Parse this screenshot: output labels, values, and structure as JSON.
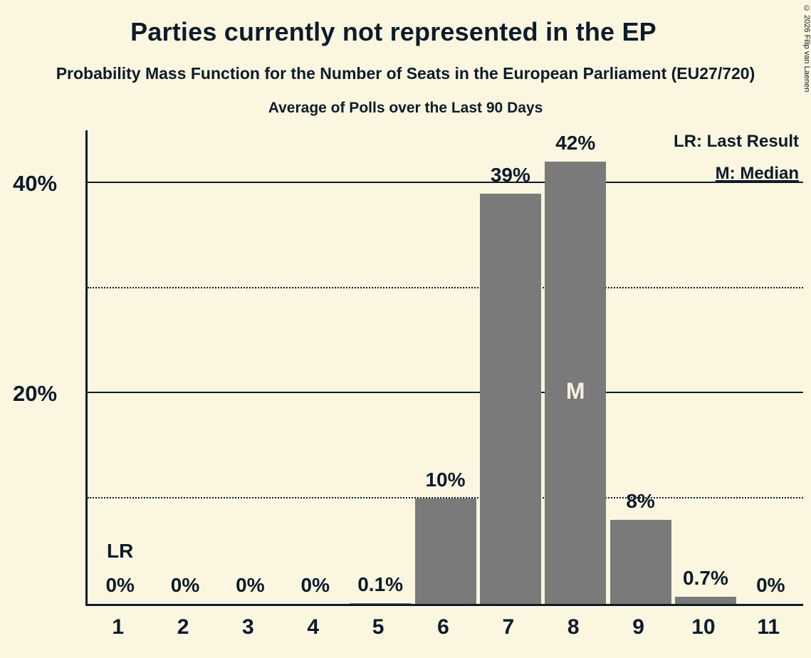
{
  "title": "Parties currently not represented in the EP",
  "subtitle": "Probability Mass Function for the Number of Seats in the European Parliament (EU27/720)",
  "subtitle2": "Average of Polls over the Last 90 Days",
  "legend": {
    "lr": "LR: Last Result",
    "m": "M: Median"
  },
  "copyright": "© 2026 Filip van Laenen",
  "colors": {
    "background": "#fbf6e0",
    "bar": "#7a7a7a",
    "text": "#0d1b2a",
    "median_label": "#f7f1dc"
  },
  "chart_data": {
    "type": "bar",
    "title": "Parties currently not represented in the EP",
    "categories": [
      "1",
      "2",
      "3",
      "4",
      "5",
      "6",
      "7",
      "8",
      "9",
      "10",
      "11"
    ],
    "values": [
      0,
      0,
      0,
      0,
      0.1,
      10,
      39,
      42,
      8,
      0.7,
      0
    ],
    "labels": [
      "0%",
      "0%",
      "0%",
      "0%",
      "0.1%",
      "10%",
      "39%",
      "42%",
      "8%",
      "0.7%",
      "0%"
    ],
    "xlabel": "",
    "ylabel": "",
    "ylim": [
      0,
      45
    ],
    "yticks": [
      {
        "label": "40%",
        "value": 40
      },
      {
        "label": "20%",
        "value": 20
      }
    ],
    "gridlines_solid": [
      20,
      40
    ],
    "gridlines_dotted": [
      10,
      30
    ],
    "legend_position": "top-right",
    "annotations": {
      "last_result_category": "1",
      "last_result_label": "LR",
      "median_category": "8",
      "median_label": "M"
    }
  }
}
